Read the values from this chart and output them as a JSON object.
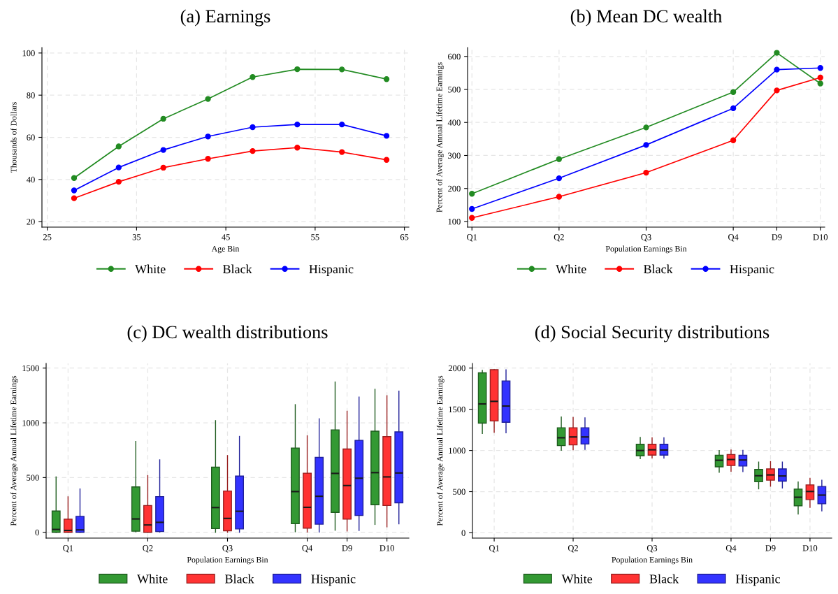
{
  "chart_data": [
    {
      "type": "line",
      "title": "(a) Earnings",
      "xlabel": "Age Bin",
      "ylabel": "Thousands of Dollars",
      "x": [
        28,
        33,
        38,
        43,
        48,
        53,
        58,
        63
      ],
      "xlim": [
        24.4,
        65.5
      ],
      "xticks": [
        25,
        35,
        45,
        55,
        65
      ],
      "ylim": [
        17.4,
        102.6
      ],
      "yticks": [
        20,
        40,
        60,
        80,
        100
      ],
      "grid": true,
      "legend": "bottom",
      "marker": "circle",
      "line_style": "solid",
      "series": [
        {
          "name": "White",
          "color": "#228b22",
          "values": [
            40.7,
            55.7,
            68.8,
            78.2,
            88.6,
            92.3,
            92.2,
            87.6
          ]
        },
        {
          "name": "Black",
          "color": "#ff0000",
          "values": [
            31.1,
            38.9,
            45.6,
            49.8,
            53.5,
            55.1,
            53.0,
            49.3
          ]
        },
        {
          "name": "Hispanic",
          "color": "#0000ff",
          "values": [
            34.8,
            45.7,
            54.0,
            60.4,
            64.8,
            66.1,
            66.1,
            60.7
          ]
        }
      ]
    },
    {
      "type": "line",
      "title": "(b) Mean DC wealth",
      "xlabel": "Population Earnings Bin",
      "ylabel": "Percent of Average Annual Lifetime Earnings",
      "categories": [
        "Q1",
        null,
        "Q2",
        null,
        "Q3",
        null,
        "Q4",
        "D9",
        "D10"
      ],
      "ylim": [
        83,
        627
      ],
      "yticks": [
        100,
        200,
        300,
        400,
        500,
        600
      ],
      "grid": true,
      "legend": "bottom",
      "marker": "circle",
      "line_style": "solid",
      "series": [
        {
          "name": "White",
          "color": "#228b22",
          "values": [
            184,
            null,
            289,
            null,
            385,
            null,
            492,
            611,
            518
          ]
        },
        {
          "name": "Black",
          "color": "#ff0000",
          "values": [
            111,
            null,
            175,
            null,
            248,
            null,
            346,
            497,
            536
          ]
        },
        {
          "name": "Hispanic",
          "color": "#0000ff",
          "values": [
            138,
            null,
            231,
            null,
            332,
            null,
            443,
            560,
            565
          ]
        }
      ]
    },
    {
      "type": "box",
      "title": "(c) DC wealth distributions",
      "xlabel": "Population Earnings Bin",
      "ylabel": "Percent of Average Annual Lifetime Earnings",
      "categories": [
        "Q1",
        null,
        "Q2",
        null,
        "Q3",
        null,
        "Q4",
        "D9",
        "D10"
      ],
      "ylim": [
        -53,
        1543
      ],
      "yticks": [
        0,
        500,
        1000,
        1500
      ],
      "grid": true,
      "legend": "bottom",
      "series": [
        {
          "name": "White",
          "color": "#339933",
          "boxes": [
            {
              "low": 0,
              "q1": 0,
              "median": 26,
              "q3": 194,
              "high": 506
            },
            null,
            {
              "low": 5,
              "q1": 10,
              "median": 122,
              "q3": 415,
              "high": 830
            },
            null,
            {
              "low": 0,
              "q1": 34,
              "median": 226,
              "q3": 595,
              "high": 1020
            },
            null,
            {
              "low": 5,
              "q1": 79,
              "median": 372,
              "q3": 770,
              "high": 1166
            },
            {
              "low": 19,
              "q1": 182,
              "median": 538,
              "q3": 936,
              "high": 1373
            },
            {
              "low": 72,
              "q1": 252,
              "median": 545,
              "q3": 924,
              "high": 1306
            }
          ]
        },
        {
          "name": "Black",
          "color": "#ff3333",
          "boxes": [
            {
              "low": 0,
              "q1": 0,
              "median": 17,
              "q3": 120,
              "high": 324
            },
            null,
            {
              "low": 0,
              "q1": 0,
              "median": 67,
              "q3": 245,
              "high": 518
            },
            null,
            {
              "low": 0,
              "q1": 14,
              "median": 127,
              "q3": 377,
              "high": 701
            },
            null,
            {
              "low": 2,
              "q1": 38,
              "median": 228,
              "q3": 540,
              "high": 881
            },
            {
              "low": 12,
              "q1": 120,
              "median": 427,
              "q3": 761,
              "high": 1106
            },
            {
              "low": 50,
              "q1": 245,
              "median": 506,
              "q3": 874,
              "high": 1248
            }
          ]
        },
        {
          "name": "Hispanic",
          "color": "#3333ff",
          "boxes": [
            {
              "low": 0,
              "q1": 0,
              "median": 22,
              "q3": 146,
              "high": 396
            },
            null,
            {
              "low": 2,
              "q1": 7,
              "median": 91,
              "q3": 326,
              "high": 662
            },
            null,
            {
              "low": 0,
              "q1": 31,
              "median": 192,
              "q3": 514,
              "high": 876
            },
            null,
            {
              "low": 2,
              "q1": 74,
              "median": 329,
              "q3": 684,
              "high": 1037
            },
            {
              "low": 17,
              "q1": 154,
              "median": 494,
              "q3": 840,
              "high": 1236
            },
            {
              "low": 77,
              "q1": 269,
              "median": 542,
              "q3": 917,
              "high": 1289
            }
          ]
        }
      ]
    },
    {
      "type": "box",
      "title": "(d) Social Security distributions",
      "xlabel": "Population Earnings Bin",
      "ylabel": "Percent of Average Annual Lifetime Earnings",
      "categories": [
        "Q1",
        null,
        "Q2",
        null,
        "Q3",
        null,
        "Q4",
        "D9",
        "D10"
      ],
      "ylim": [
        -64,
        2057
      ],
      "yticks": [
        0,
        500,
        1000,
        1500,
        2000
      ],
      "grid": true,
      "legend": "bottom",
      "series": [
        {
          "name": "White",
          "color": "#339933",
          "boxes": [
            {
              "low": 1205,
              "q1": 1332,
              "median": 1565,
              "q3": 1943,
              "high": 1972
            },
            null,
            {
              "low": 1002,
              "q1": 1059,
              "median": 1154,
              "q3": 1275,
              "high": 1406
            },
            null,
            {
              "low": 900,
              "q1": 935,
              "median": 999,
              "q3": 1075,
              "high": 1158
            },
            null,
            {
              "low": 735,
              "q1": 801,
              "median": 881,
              "q3": 941,
              "high": 999
            },
            {
              "low": 534,
              "q1": 620,
              "median": 693,
              "q3": 770,
              "high": 859
            },
            {
              "low": 229,
              "q1": 328,
              "median": 432,
              "q3": 531,
              "high": 617
            }
          ]
        },
        {
          "name": "Black",
          "color": "#ff3333",
          "boxes": [
            {
              "low": 1221,
              "q1": 1358,
              "median": 1596,
              "q3": 1981,
              "high": 1981
            },
            null,
            {
              "low": 1008,
              "q1": 1068,
              "median": 1164,
              "q3": 1275,
              "high": 1399
            },
            null,
            {
              "low": 909,
              "q1": 944,
              "median": 1008,
              "q3": 1075,
              "high": 1154
            },
            null,
            {
              "low": 747,
              "q1": 817,
              "median": 890,
              "q3": 951,
              "high": 1005
            },
            {
              "low": 566,
              "q1": 639,
              "median": 703,
              "q3": 776,
              "high": 865
            },
            {
              "low": 308,
              "q1": 404,
              "median": 502,
              "q3": 582,
              "high": 661
            }
          ]
        },
        {
          "name": "Hispanic",
          "color": "#3333ff",
          "boxes": [
            {
              "low": 1215,
              "q1": 1342,
              "median": 1539,
              "q3": 1844,
              "high": 1978
            },
            null,
            {
              "low": 1014,
              "q1": 1078,
              "median": 1164,
              "q3": 1275,
              "high": 1396
            },
            null,
            {
              "low": 906,
              "q1": 944,
              "median": 1005,
              "q3": 1075,
              "high": 1154
            },
            null,
            {
              "low": 744,
              "q1": 811,
              "median": 884,
              "q3": 941,
              "high": 1002
            },
            {
              "low": 544,
              "q1": 627,
              "median": 690,
              "q3": 776,
              "high": 859
            },
            {
              "low": 267,
              "q1": 353,
              "median": 458,
              "q3": 563,
              "high": 639
            }
          ]
        }
      ]
    }
  ]
}
